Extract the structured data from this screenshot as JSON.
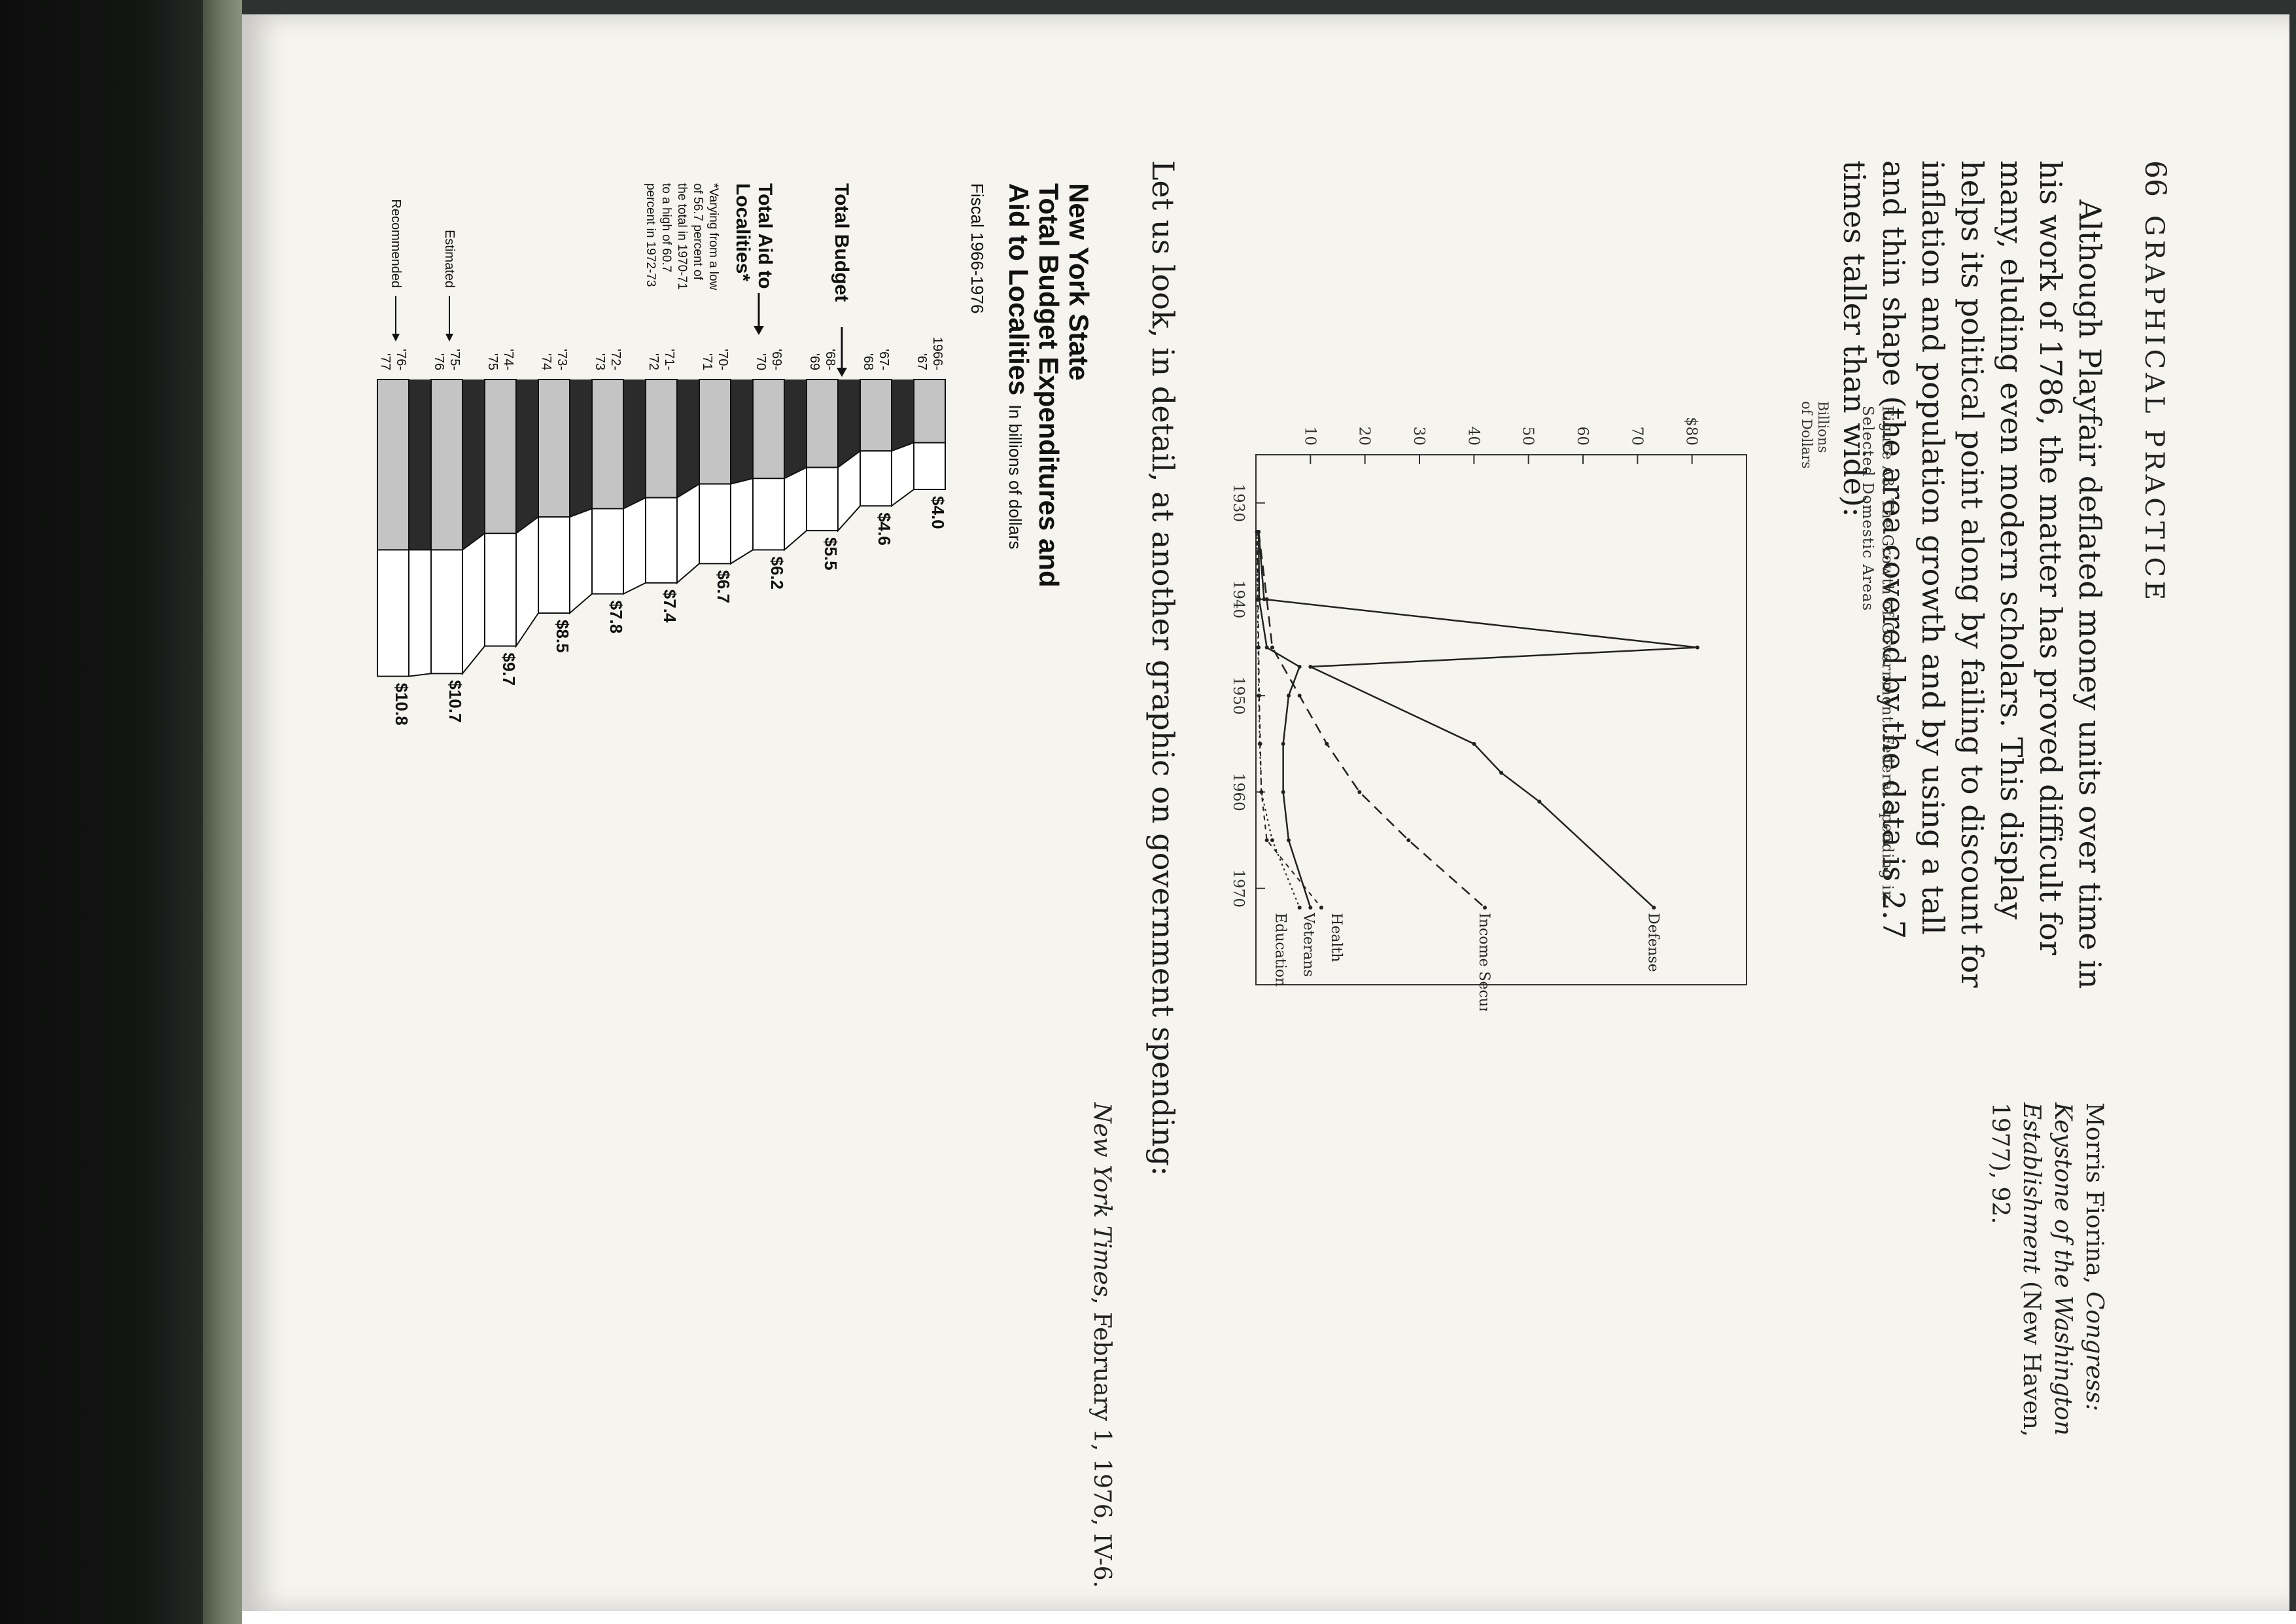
{
  "running_head": {
    "page_number": "66",
    "section": "GRAPHICAL PRACTICE"
  },
  "body_text": "Although Playfair deflated money units over time in his work of 1786, the matter has proved difficult for many, eluding even modern scholars. This display helps its political point along by failing to discount for inflation and population growth and by using a tall and thin shape (the area covered by the data is 2.7 times taller than wide):",
  "side_note": {
    "author": "Morris Fiorina, ",
    "title": "Congress: Keystone of the Washington Establishment",
    "rest": " (New Haven, 1977), 92."
  },
  "figure_a3": {
    "title": "Figure A3. The Growth of Government: Federal Spending in Selected Domestic Areas",
    "chart_data": {
      "type": "line",
      "ylabel": "Billions of Dollars",
      "y_ticks": [
        "10",
        "20",
        "30",
        "40",
        "50",
        "60",
        "70",
        "$80"
      ],
      "x_ticks": [
        "1930",
        "1940",
        "1950",
        "1960",
        "1970"
      ],
      "ylim": [
        0,
        90
      ],
      "xlim": [
        1925,
        1980
      ],
      "series": [
        {
          "name": "Defense",
          "x": [
            1933,
            1940,
            1945,
            1947,
            1955,
            1958,
            1961,
            1972
          ],
          "y": [
            0.5,
            1.5,
            81,
            10,
            40,
            45,
            52,
            73
          ]
        },
        {
          "name": "Income Security",
          "x": [
            1933,
            1940,
            1945,
            1950,
            1955,
            1960,
            1965,
            1972
          ],
          "y": [
            0.5,
            2,
            3,
            8,
            13,
            19,
            28,
            42
          ]
        },
        {
          "name": "Health",
          "x": [
            1933,
            1940,
            1945,
            1950,
            1955,
            1960,
            1965,
            1972
          ],
          "y": [
            0.2,
            0.4,
            0.5,
            0.6,
            0.8,
            1,
            2,
            12
          ]
        },
        {
          "name": "Veterans",
          "x": [
            1933,
            1940,
            1945,
            1947,
            1950,
            1955,
            1960,
            1965,
            1972
          ],
          "y": [
            0.5,
            0.6,
            2,
            8,
            6,
            5,
            5,
            6,
            10
          ]
        },
        {
          "name": "Education",
          "x": [
            1933,
            1940,
            1945,
            1950,
            1955,
            1960,
            1965,
            1972
          ],
          "y": [
            0.2,
            0.3,
            0.4,
            0.5,
            0.7,
            1,
            3,
            8
          ]
        }
      ]
    }
  },
  "transition_text": "Let us look, in detail, at another graphic on government spending:",
  "nyt_chart": {
    "title_lines": [
      "New York State",
      "Total Budget Expenditures and",
      "Aid to Localities"
    ],
    "unit": "In billions of dollars",
    "subtitle": "Fiscal 1966-1976",
    "total_budget_label": "Total Budget",
    "total_aid_label_lines": [
      "Total Aid to",
      "Localities*"
    ],
    "footnote_lines": [
      "*Varying from a low",
      "of 56.7 percent of",
      "the total in 1970-71",
      "to a high of 60.7",
      "percent in 1972-73"
    ],
    "estimated_label": "Estimated",
    "recommended_label": "Recommended",
    "chart_data": {
      "type": "bar",
      "categories": [
        "1966-'67",
        "'67-'68",
        "'68-'69",
        "'69-'70",
        "'70-'71",
        "'71-'72",
        "'72-'73",
        "'73-'74",
        "'74-'75",
        "'75-'76",
        "'76-'77"
      ],
      "category_lines": [
        [
          "1966-",
          "'67"
        ],
        [
          "'67-",
          "'68"
        ],
        [
          "'68-",
          "'69"
        ],
        [
          "'69-",
          "'70"
        ],
        [
          "'70-",
          "'71"
        ],
        [
          "'71-",
          "'72"
        ],
        [
          "'72-",
          "'73"
        ],
        [
          "'73-",
          "'74"
        ],
        [
          "'74-",
          "'75"
        ],
        [
          "'75-",
          "'76"
        ],
        [
          "'76-",
          "'77"
        ]
      ],
      "series": [
        {
          "name": "Total Budget",
          "values": [
            4.0,
            4.6,
            5.5,
            6.2,
            6.7,
            7.4,
            7.8,
            8.5,
            9.7,
            10.7,
            10.8
          ],
          "labels": [
            "$4.0",
            "$4.6",
            "$5.5",
            "$6.2",
            "$6.7",
            "$7.4",
            "$7.8",
            "$8.5",
            "$9.7",
            "$10.7",
            "$10.8"
          ]
        },
        {
          "name": "Total Aid to Localities",
          "values": [
            2.3,
            2.6,
            3.2,
            3.6,
            3.8,
            4.3,
            4.7,
            5.0,
            5.6,
            6.2,
            6.2
          ]
        }
      ]
    }
  },
  "credit": {
    "source": "New York Times",
    "rest": ", February 1, 1976, IV-6."
  },
  "colors": {
    "paper": "#f5f4ef",
    "binding": "#131513",
    "spine_green": "#6f7a66",
    "grey_fill": "#c4c4c4",
    "dark_fill": "#2b2b2b"
  }
}
